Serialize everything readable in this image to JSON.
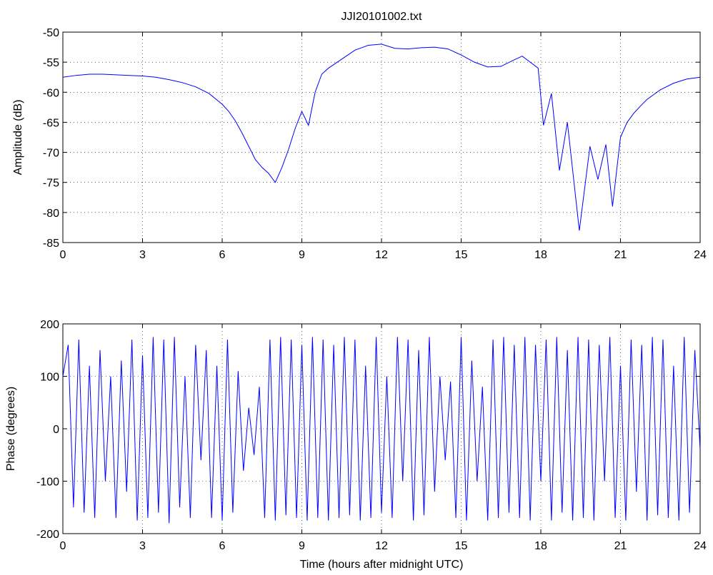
{
  "chart_data": [
    {
      "type": "line",
      "title": "JJI20101002.txt",
      "ylabel": "Amplitude (dB)",
      "color": "#0000ff",
      "grid": true,
      "xlim": [
        0,
        24
      ],
      "xticks": [
        0,
        3,
        6,
        9,
        12,
        15,
        18,
        21,
        24
      ],
      "ylim": [
        -85,
        -50
      ],
      "yticks": [
        -85,
        -80,
        -75,
        -70,
        -65,
        -60,
        -55,
        -50
      ],
      "x": [
        0,
        0.5,
        1,
        1.5,
        2,
        2.5,
        3,
        3.5,
        4,
        4.5,
        5,
        5.5,
        6,
        6.25,
        6.5,
        6.75,
        7,
        7.25,
        7.5,
        7.75,
        8,
        8.25,
        8.5,
        8.75,
        9,
        9.25,
        9.5,
        9.75,
        10,
        10.5,
        11,
        11.5,
        12,
        12.5,
        13,
        13.5,
        14,
        14.5,
        15,
        15.5,
        16,
        16.5,
        17,
        17.3,
        17.6,
        17.9,
        18.1,
        18.4,
        18.7,
        19,
        19.45,
        19.85,
        20.15,
        20.45,
        20.7,
        21,
        21.25,
        21.5,
        21.75,
        22,
        22.5,
        23,
        23.5,
        24
      ],
      "values": [
        -57.5,
        -57.2,
        -57,
        -57,
        -57.1,
        -57.2,
        -57.3,
        -57.5,
        -57.9,
        -58.4,
        -59.1,
        -60.2,
        -62,
        -63.2,
        -64.8,
        -66.8,
        -69,
        -71.2,
        -72.5,
        -73.5,
        -75,
        -72.5,
        -69.5,
        -66,
        -63.2,
        -65.5,
        -60,
        -57,
        -56,
        -54.5,
        -53,
        -52.2,
        -52,
        -52.7,
        -52.8,
        -52.6,
        -52.5,
        -52.8,
        -53.8,
        -55,
        -55.8,
        -55.7,
        -54.6,
        -54,
        -55,
        -56,
        -65.5,
        -60.2,
        -73,
        -65,
        -83,
        -69,
        -74.5,
        -68.7,
        -79,
        -67.5,
        -65,
        -63.5,
        -62.3,
        -61.2,
        -59.6,
        -58.5,
        -57.8,
        -57.5
      ]
    },
    {
      "type": "line",
      "ylabel": "Phase (degrees)",
      "xlabel": "Time (hours after midnight UTC)",
      "color": "#0000ff",
      "grid": true,
      "xlim": [
        0,
        24
      ],
      "xticks": [
        0,
        3,
        6,
        9,
        12,
        15,
        18,
        21,
        24
      ],
      "ylim": [
        -200,
        200
      ],
      "yticks": [
        -200,
        -100,
        0,
        100,
        200
      ],
      "x": [
        0,
        0.2,
        0.4,
        0.6,
        0.8,
        1,
        1.2,
        1.4,
        1.6,
        1.8,
        2,
        2.2,
        2.4,
        2.6,
        2.8,
        3,
        3.2,
        3.4,
        3.6,
        3.8,
        4,
        4.2,
        4.4,
        4.6,
        4.8,
        5,
        5.2,
        5.4,
        5.6,
        5.8,
        6,
        6.2,
        6.4,
        6.6,
        6.8,
        7,
        7.2,
        7.4,
        7.6,
        7.8,
        8,
        8.2,
        8.4,
        8.6,
        8.8,
        9,
        9.2,
        9.4,
        9.6,
        9.8,
        10,
        10.2,
        10.4,
        10.6,
        10.8,
        11,
        11.2,
        11.4,
        11.6,
        11.8,
        12,
        12.2,
        12.4,
        12.6,
        12.8,
        13,
        13.2,
        13.4,
        13.6,
        13.8,
        14,
        14.2,
        14.4,
        14.6,
        14.8,
        15,
        15.2,
        15.4,
        15.6,
        15.8,
        16,
        16.2,
        16.4,
        16.6,
        16.8,
        17,
        17.2,
        17.4,
        17.6,
        17.8,
        18,
        18.2,
        18.4,
        18.6,
        18.8,
        19,
        19.2,
        19.4,
        19.6,
        19.8,
        20,
        20.2,
        20.4,
        20.6,
        20.8,
        21,
        21.2,
        21.4,
        21.6,
        21.8,
        22,
        22.2,
        22.4,
        22.6,
        22.8,
        23,
        23.2,
        23.4,
        23.6,
        23.8,
        24
      ],
      "values": [
        100,
        160,
        -150,
        170,
        -160,
        120,
        -170,
        150,
        -100,
        100,
        -170,
        130,
        -120,
        170,
        -175,
        140,
        -170,
        175,
        -160,
        170,
        -180,
        175,
        -150,
        100,
        -170,
        160,
        -60,
        150,
        -170,
        120,
        -175,
        170,
        -160,
        110,
        -80,
        40,
        -50,
        80,
        -170,
        170,
        -175,
        175,
        -165,
        170,
        -170,
        160,
        -175,
        175,
        -170,
        170,
        -175,
        160,
        -170,
        175,
        -165,
        170,
        -175,
        120,
        -170,
        175,
        -160,
        100,
        -170,
        175,
        -100,
        170,
        -175,
        150,
        -165,
        175,
        -120,
        100,
        -60,
        90,
        -170,
        175,
        -175,
        130,
        -100,
        80,
        -175,
        170,
        -170,
        175,
        -160,
        160,
        -170,
        175,
        -175,
        160,
        -100,
        170,
        -175,
        175,
        -160,
        150,
        -175,
        175,
        -170,
        170,
        -175,
        160,
        -100,
        175,
        -170,
        120,
        -175,
        170,
        -120,
        160,
        -175,
        175,
        -165,
        170,
        -170,
        120,
        -175,
        175,
        -160,
        150,
        -40
      ]
    }
  ]
}
